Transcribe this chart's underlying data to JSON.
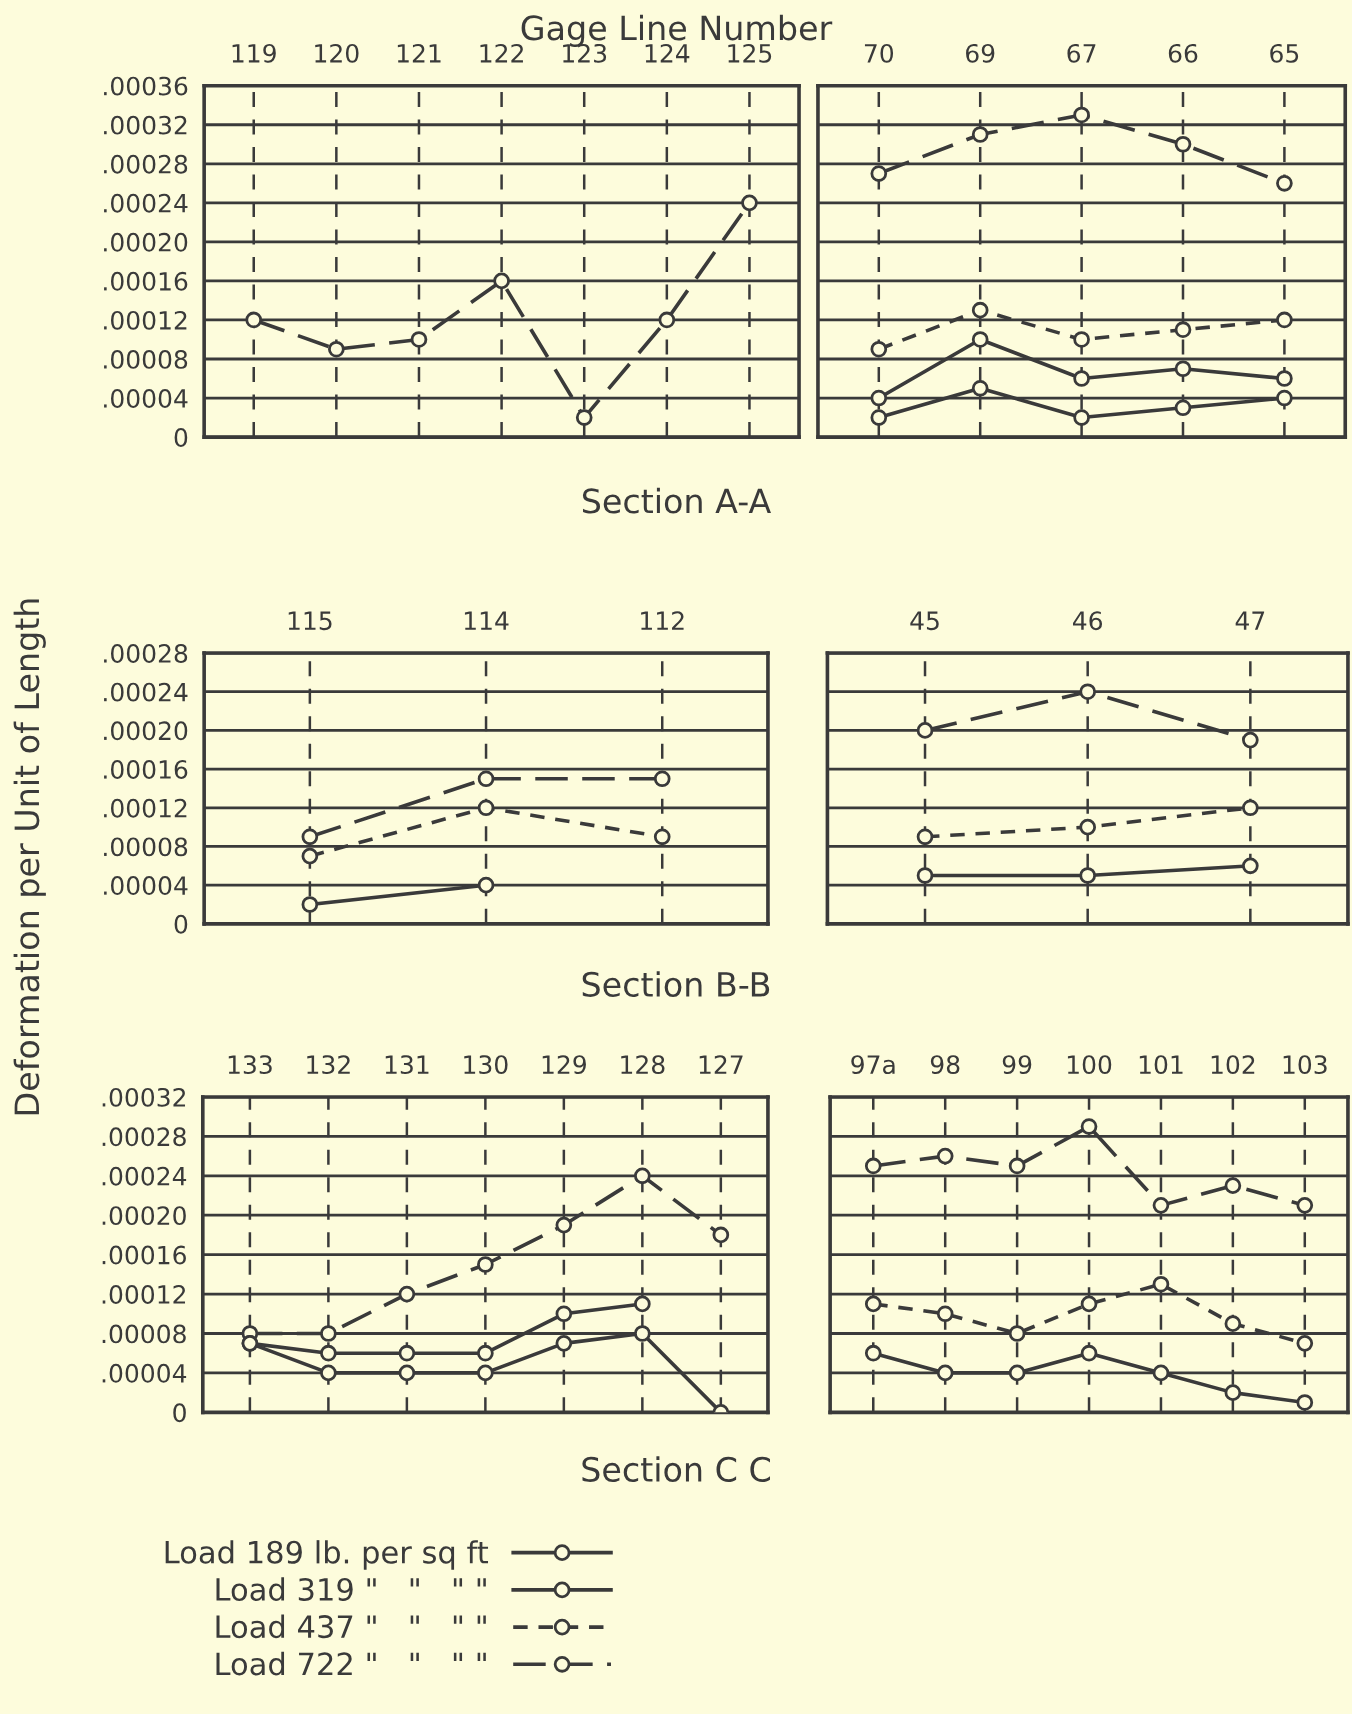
{
  "chart_data": [
    {
      "type": "line",
      "title": "Gage Line Number",
      "xlabel": "Section A-A",
      "categories": [
        "119",
        "120",
        "121",
        "122",
        "123",
        "124",
        "125"
      ],
      "grid": true,
      "series": [
        {
          "color": "#3a3a3a",
          "line_style": "dashed",
          "marker": "circle",
          "values": [
            0.00012,
            9e-05,
            0.0001,
            0.00016,
            2e-05,
            0.00012,
            0.00024
          ]
        }
      ],
      "ylim": [
        0,
        0.00036
      ],
      "yticks": [
        {
          "value": 0.00036,
          "label": ".00036"
        },
        {
          "value": 0.00032,
          "label": ".00032"
        },
        {
          "value": 0.00028,
          "label": ".00028"
        },
        {
          "value": 0.00024,
          "label": ".00024"
        },
        {
          "value": 0.0002,
          "label": ".00020"
        },
        {
          "value": 0.00016,
          "label": ".00016"
        },
        {
          "value": 0.00012,
          "label": ".00012"
        },
        {
          "value": 8e-05,
          "label": ".00008"
        },
        {
          "value": 4e-05,
          "label": ".00004"
        },
        0
      ]
    },
    {
      "type": "line",
      "categories": [
        "70",
        "69",
        "67",
        "66",
        "65"
      ],
      "grid": true,
      "tick_labels": "x",
      "legend": "bottom",
      "series": [
        {
          "name": "Load 189 lb. per sq ft",
          "color": "#3a3a3a",
          "line_style": "solid",
          "marker": "circle",
          "values": [
            2e-05,
            5e-05,
            2e-05,
            3e-05,
            4e-05
          ]
        },
        {
          "name": "Load 319 \"   \"   \" \"",
          "color": "#3a3a3a",
          "line_style": "solid",
          "marker": "circle",
          "values": [
            4e-05,
            0.0001,
            6e-05,
            7e-05,
            6e-05
          ]
        },
        {
          "name": "Load 437 \"   \"   \" \"",
          "color": "#3a3a3a",
          "line_style": "dotted",
          "marker": "circle",
          "values": [
            9e-05,
            0.00013,
            0.0001,
            0.00011,
            0.00012
          ]
        },
        {
          "name": "Load 722 \"   \"   \" \"",
          "color": "#3a3a3a",
          "line_style": "dashed",
          "marker": "circle",
          "values": [
            0.00027,
            0.00031,
            0.00033,
            0.0003,
            0.00026
          ]
        }
      ],
      "ylim": [
        0,
        0.00036
      ],
      "yticks": [
        0.00036,
        0.00032,
        0.00028,
        0.00024,
        0.0002,
        0.00016,
        0.00012,
        8e-05,
        4e-05,
        0
      ]
    },
    {
      "type": "line",
      "xlabel": "Section B-B",
      "ylabel": "Deformation per Unit of Length",
      "categories": [
        "115",
        "114",
        "112"
      ],
      "grid": true,
      "series": [
        {
          "color": "#3a3a3a",
          "line_style": "solid",
          "marker": "circle",
          "values": [
            2e-05,
            4e-05,
            null
          ]
        },
        {
          "color": "#3a3a3a",
          "line_style": "dotted",
          "marker": "circle",
          "values": [
            7e-05,
            0.00012,
            9e-05
          ]
        },
        {
          "color": "#3a3a3a",
          "line_style": "dashed",
          "marker": "circle",
          "values": [
            9e-05,
            0.00015,
            0.00015
          ]
        }
      ],
      "ylim": [
        0,
        0.00028
      ],
      "yticks": [
        {
          "value": 0.00028,
          "label": ".00028"
        },
        {
          "value": 0.00024,
          "label": ".00024"
        },
        {
          "value": 0.0002,
          "label": ".00020"
        },
        {
          "value": 0.00016,
          "label": ".00016"
        },
        {
          "value": 0.00012,
          "label": ".00012"
        },
        {
          "value": 8e-05,
          "label": ".00008"
        },
        {
          "value": 4e-05,
          "label": ".00004"
        },
        0
      ]
    },
    {
      "type": "line",
      "categories": [
        "45",
        "46",
        "47"
      ],
      "grid": true,
      "tick_labels": "x",
      "series": [
        {
          "color": "#3a3a3a",
          "line_style": "solid",
          "marker": "circle",
          "values": [
            5e-05,
            5e-05,
            6e-05
          ]
        },
        {
          "color": "#3a3a3a",
          "line_style": "dotted",
          "marker": "circle",
          "values": [
            9e-05,
            0.0001,
            0.00012
          ]
        },
        {
          "color": "#3a3a3a",
          "line_style": "dashed",
          "marker": "circle",
          "values": [
            0.0002,
            0.00024,
            0.00019
          ]
        }
      ],
      "ylim": [
        0,
        0.00028
      ],
      "yticks": [
        0.00028,
        0.00024,
        0.0002,
        0.00016,
        0.00012,
        8e-05,
        4e-05,
        0
      ]
    },
    {
      "type": "line",
      "xlabel": "Section C C",
      "categories": [
        "133",
        "132",
        "131",
        "130",
        "129",
        "128",
        "127"
      ],
      "grid": true,
      "series": [
        {
          "color": "#3a3a3a",
          "line_style": "solid",
          "marker": "circle",
          "values": [
            7e-05,
            4e-05,
            4e-05,
            4e-05,
            7e-05,
            8e-05,
            0
          ]
        },
        {
          "color": "#3a3a3a",
          "line_style": "solid",
          "marker": "circle",
          "values": [
            7e-05,
            6e-05,
            6e-05,
            6e-05,
            0.0001,
            0.00011,
            null
          ]
        },
        {
          "color": "#3a3a3a",
          "line_style": "dashed",
          "marker": "circle",
          "values": [
            8e-05,
            8e-05,
            0.00012,
            0.00015,
            0.00019,
            0.00024,
            0.00018
          ]
        }
      ],
      "ylim": [
        0,
        0.00032
      ],
      "yticks": [
        {
          "value": 0.00032,
          "label": ".00032"
        },
        {
          "value": 0.00028,
          "label": ".00028"
        },
        {
          "value": 0.00024,
          "label": ".00024"
        },
        {
          "value": 0.0002,
          "label": ".00020"
        },
        {
          "value": 0.00016,
          "label": ".00016"
        },
        {
          "value": 0.00012,
          "label": ".00012"
        },
        {
          "value": 8e-05,
          "label": ".00008"
        },
        {
          "value": 4e-05,
          "label": ".00004"
        },
        0
      ]
    },
    {
      "type": "line",
      "categories": [
        "97a",
        "98",
        "99",
        "100",
        "101",
        "102",
        "103"
      ],
      "grid": true,
      "tick_labels": "x",
      "series": [
        {
          "color": "#3a3a3a",
          "line_style": "solid",
          "marker": "circle",
          "values": [
            6e-05,
            4e-05,
            4e-05,
            6e-05,
            4e-05,
            2e-05,
            1e-05
          ]
        },
        {
          "color": "#3a3a3a",
          "line_style": "dotted",
          "marker": "circle",
          "values": [
            0.00011,
            0.0001,
            8e-05,
            0.00011,
            0.00013,
            9e-05,
            7e-05
          ]
        },
        {
          "color": "#3a3a3a",
          "line_style": "dashed",
          "marker": "circle",
          "values": [
            0.00025,
            0.00026,
            0.00025,
            0.00029,
            0.00021,
            0.00023,
            0.00021
          ]
        }
      ],
      "ylim": [
        0,
        0.00032
      ],
      "yticks": [
        0.00032,
        0.00028,
        0.00024,
        0.0002,
        0.00016,
        0.00012,
        8e-05,
        4e-05,
        0
      ]
    }
  ]
}
